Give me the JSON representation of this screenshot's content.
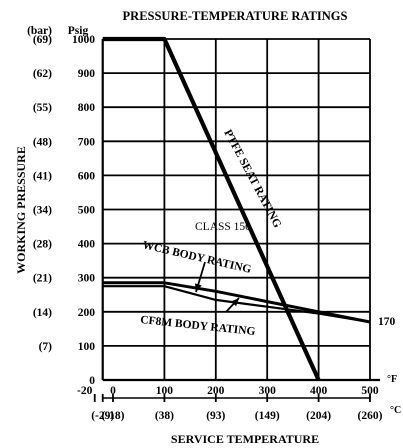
{
  "chart_data": {
    "type": "line",
    "title": "PRESSURE-TEMPERATURE RATINGS",
    "ylabel": "WORKING PRESSURE",
    "xlabel": "SERVICE TEMPERATURE",
    "y_unit_primary": "Psig",
    "y_unit_secondary": "(bar)",
    "x_unit_primary": "°F",
    "x_unit_secondary": "°C",
    "x_ticks_f": [
      "-20",
      "0",
      "100",
      "200",
      "300",
      "400",
      "500"
    ],
    "x_ticks_c": [
      "(-29)",
      "(-18)",
      "(38)",
      "(93)",
      "(149)",
      "(204)",
      "(260)"
    ],
    "y_ticks_psig": [
      "0",
      "100",
      "200",
      "300",
      "400",
      "500",
      "600",
      "700",
      "800",
      "900",
      "1000"
    ],
    "y_ticks_bar": [
      "",
      "(7)",
      "(14)",
      "(21)",
      "(28)",
      "(34)",
      "(41)",
      "(48)",
      "(55)",
      "(62)",
      "(69)"
    ],
    "xlim": [
      0,
      500
    ],
    "ylim": [
      0,
      1000
    ],
    "grid": true,
    "annotations": {
      "class": "CLASS 150",
      "end_value": "170"
    },
    "series": [
      {
        "name": "PTFE SEAT RATING",
        "points": [
          [
            -20,
            1000
          ],
          [
            100,
            1000
          ],
          [
            400,
            0
          ]
        ]
      },
      {
        "name": "WCB BODY RATING",
        "points": [
          [
            -20,
            285
          ],
          [
            100,
            285
          ],
          [
            200,
            260
          ],
          [
            300,
            230
          ],
          [
            400,
            200
          ],
          [
            500,
            170
          ]
        ]
      },
      {
        "name": "CF8M BODY RATING",
        "points": [
          [
            -20,
            275
          ],
          [
            100,
            275
          ],
          [
            200,
            235
          ],
          [
            300,
            215
          ],
          [
            400,
            195
          ],
          [
            500,
            170
          ]
        ]
      }
    ]
  }
}
